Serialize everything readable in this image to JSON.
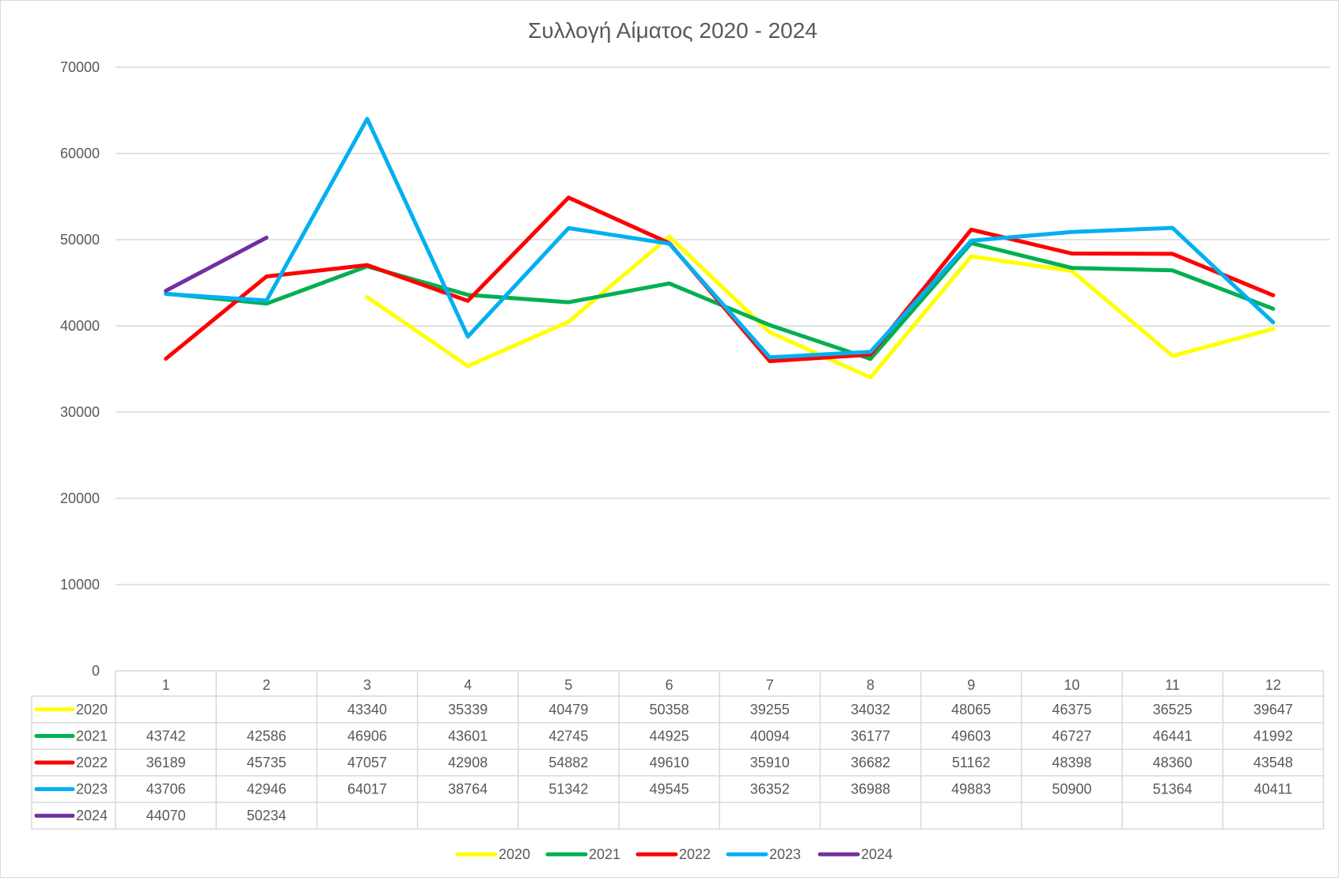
{
  "chart_data": {
    "type": "line",
    "title": "Συλλογή Αίματος 2020 - 2024",
    "categories": [
      "1",
      "2",
      "3",
      "4",
      "5",
      "6",
      "7",
      "8",
      "9",
      "10",
      "11",
      "12"
    ],
    "y_ticks": [
      "0",
      "10000",
      "20000",
      "30000",
      "40000",
      "50000",
      "60000",
      "70000"
    ],
    "ylim": [
      0,
      70000
    ],
    "grid": true,
    "legend_position": "bottom",
    "data_table": true,
    "series": [
      {
        "name": "2020",
        "color": "#ffff00",
        "values": [
          null,
          null,
          43340,
          35339,
          40479,
          50358,
          39255,
          34032,
          48065,
          46375,
          36525,
          39647
        ]
      },
      {
        "name": "2021",
        "color": "#00b050",
        "values": [
          43742,
          42586,
          46906,
          43601,
          42745,
          44925,
          40094,
          36177,
          49603,
          46727,
          46441,
          41992
        ]
      },
      {
        "name": "2022",
        "color": "#ff0000",
        "values": [
          36189,
          45735,
          47057,
          42908,
          54882,
          49610,
          35910,
          36682,
          51162,
          48398,
          48360,
          43548
        ]
      },
      {
        "name": "2023",
        "color": "#00b0f0",
        "values": [
          43706,
          42946,
          64017,
          38764,
          51342,
          49545,
          36352,
          36988,
          49883,
          50900,
          51364,
          40411
        ]
      },
      {
        "name": "2024",
        "color": "#7030a0",
        "values": [
          44070,
          50234,
          null,
          null,
          null,
          null,
          null,
          null,
          null,
          null,
          null,
          null
        ]
      }
    ]
  }
}
